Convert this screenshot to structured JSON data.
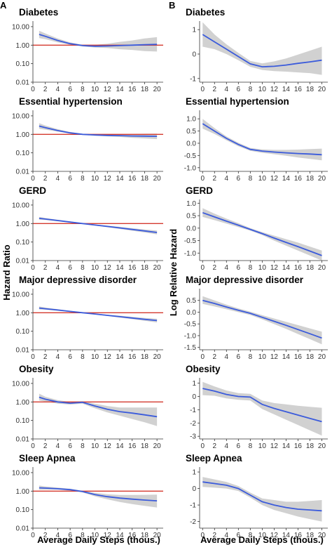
{
  "figure": {
    "panel_letters": [
      "A",
      "B"
    ],
    "left_ylabel": "Hazard Ratio",
    "right_ylabel": "Log Relative Hazard",
    "xlabel": "Average Daily Steps (thous.)"
  },
  "colors": {
    "fit": "#3b5bdb",
    "band": "#c9c9c9",
    "ref": "#d43a2f",
    "axis": "#333333"
  },
  "chart_data": [
    {
      "type": "line",
      "column": "A",
      "title": "Diabetes",
      "log_y": true,
      "ylim": [
        0.01,
        20
      ],
      "yticks": [
        0.01,
        0.1,
        1,
        10
      ],
      "ytick_labels": [
        "0.01",
        "0.10",
        "1.00",
        "10.00"
      ],
      "ref_line": 1,
      "xlim": [
        0,
        21
      ],
      "xticks": [
        0,
        2,
        4,
        6,
        8,
        10,
        12,
        14,
        16,
        18,
        20
      ],
      "x": [
        1,
        2,
        4,
        6,
        8,
        10,
        12,
        14,
        16,
        18,
        20
      ],
      "y": [
        3.8,
        3.0,
        1.8,
        1.2,
        0.95,
        0.88,
        0.9,
        0.95,
        1.0,
        1.05,
        1.1
      ],
      "lower": [
        2.4,
        2.1,
        1.4,
        1.05,
        0.85,
        0.75,
        0.7,
        0.6,
        0.55,
        0.48,
        0.45
      ],
      "upper": [
        6.0,
        4.3,
        2.3,
        1.4,
        1.05,
        1.05,
        1.2,
        1.5,
        1.8,
        2.3,
        2.7
      ]
    },
    {
      "type": "line",
      "column": "A",
      "title": "Essential hypertension",
      "log_y": true,
      "ylim": [
        0.01,
        20
      ],
      "yticks": [
        0.01,
        0.1,
        1,
        10
      ],
      "ytick_labels": [
        "0.01",
        "0.10",
        "1.00",
        "10.00"
      ],
      "ref_line": 1,
      "xlim": [
        0,
        21
      ],
      "xticks": [
        0,
        2,
        4,
        6,
        8,
        10,
        12,
        14,
        16,
        18,
        20
      ],
      "x": [
        1,
        2,
        4,
        6,
        8,
        10,
        12,
        14,
        16,
        18,
        20
      ],
      "y": [
        2.8,
        2.3,
        1.6,
        1.2,
        1.0,
        0.92,
        0.88,
        0.85,
        0.82,
        0.8,
        0.78
      ],
      "lower": [
        2.0,
        1.8,
        1.4,
        1.1,
        0.93,
        0.85,
        0.78,
        0.72,
        0.65,
        0.6,
        0.55
      ],
      "upper": [
        4.0,
        3.0,
        1.9,
        1.35,
        1.07,
        1.0,
        1.0,
        1.0,
        1.05,
        1.08,
        1.1
      ]
    },
    {
      "type": "line",
      "column": "A",
      "title": "GERD",
      "log_y": true,
      "ylim": [
        0.01,
        20
      ],
      "yticks": [
        0.01,
        0.1,
        1,
        10
      ],
      "ytick_labels": [
        "0.01",
        "0.10",
        "1.00",
        "10.00"
      ],
      "ref_line": 1,
      "xlim": [
        0,
        21
      ],
      "xticks": [
        0,
        2,
        4,
        6,
        8,
        10,
        12,
        14,
        16,
        18,
        20
      ],
      "x": [
        1,
        2,
        4,
        6,
        8,
        10,
        12,
        14,
        16,
        18,
        20
      ],
      "y": [
        1.9,
        1.75,
        1.45,
        1.2,
        1.0,
        0.83,
        0.7,
        0.58,
        0.48,
        0.4,
        0.33
      ],
      "lower": [
        1.6,
        1.55,
        1.32,
        1.12,
        0.95,
        0.78,
        0.63,
        0.51,
        0.41,
        0.33,
        0.26
      ],
      "upper": [
        2.3,
        2.0,
        1.6,
        1.3,
        1.05,
        0.89,
        0.77,
        0.66,
        0.56,
        0.48,
        0.42
      ]
    },
    {
      "type": "line",
      "column": "A",
      "title": "Major depressive disorder",
      "log_y": true,
      "ylim": [
        0.01,
        20
      ],
      "yticks": [
        0.01,
        0.1,
        1,
        10
      ],
      "ytick_labels": [
        "0.01",
        "0.10",
        "1.00",
        "10.00"
      ],
      "ref_line": 1,
      "xlim": [
        0,
        21
      ],
      "xticks": [
        0,
        2,
        4,
        6,
        8,
        10,
        12,
        14,
        16,
        18,
        20
      ],
      "x": [
        1,
        2,
        4,
        6,
        8,
        10,
        12,
        14,
        16,
        18,
        20
      ],
      "y": [
        1.8,
        1.65,
        1.4,
        1.18,
        1.0,
        0.85,
        0.72,
        0.61,
        0.52,
        0.44,
        0.38
      ],
      "lower": [
        1.5,
        1.45,
        1.27,
        1.1,
        0.95,
        0.8,
        0.66,
        0.54,
        0.45,
        0.37,
        0.3
      ],
      "upper": [
        2.2,
        1.9,
        1.55,
        1.27,
        1.05,
        0.9,
        0.78,
        0.69,
        0.6,
        0.53,
        0.47
      ]
    },
    {
      "type": "line",
      "column": "A",
      "title": "Obesity",
      "log_y": true,
      "ylim": [
        0.01,
        20
      ],
      "yticks": [
        0.01,
        0.1,
        1,
        10
      ],
      "ytick_labels": [
        "0.01",
        "0.10",
        "1.00",
        "10.00"
      ],
      "ref_line": 1,
      "xlim": [
        0,
        21
      ],
      "xticks": [
        0,
        2,
        4,
        6,
        8,
        10,
        12,
        14,
        16,
        18,
        20
      ],
      "x": [
        1,
        2,
        4,
        6,
        8,
        10,
        12,
        14,
        16,
        18,
        20
      ],
      "y": [
        1.8,
        1.4,
        1.0,
        0.85,
        0.95,
        0.6,
        0.4,
        0.3,
        0.25,
        0.2,
        0.16
      ],
      "lower": [
        1.2,
        1.05,
        0.8,
        0.72,
        0.8,
        0.45,
        0.27,
        0.18,
        0.12,
        0.08,
        0.05
      ],
      "upper": [
        2.8,
        1.9,
        1.25,
        1.0,
        1.1,
        0.8,
        0.6,
        0.5,
        0.5,
        0.5,
        0.5
      ]
    },
    {
      "type": "line",
      "column": "A",
      "title": "Sleep Apnea",
      "log_y": true,
      "ylim": [
        0.01,
        20
      ],
      "yticks": [
        0.01,
        0.1,
        1,
        10
      ],
      "ytick_labels": [
        "0.01",
        "0.10",
        "1.00",
        "10.00"
      ],
      "ref_line": 1,
      "xlim": [
        0,
        21
      ],
      "xticks": [
        0,
        2,
        4,
        6,
        8,
        10,
        12,
        14,
        16,
        18,
        20
      ],
      "x": [
        1,
        2,
        4,
        6,
        8,
        10,
        12,
        14,
        16,
        18,
        20
      ],
      "y": [
        1.5,
        1.45,
        1.35,
        1.2,
        0.95,
        0.65,
        0.5,
        0.42,
        0.37,
        0.33,
        0.3
      ],
      "lower": [
        1.2,
        1.2,
        1.2,
        1.05,
        0.85,
        0.52,
        0.36,
        0.26,
        0.2,
        0.16,
        0.13
      ],
      "upper": [
        2.0,
        1.8,
        1.55,
        1.35,
        1.05,
        0.8,
        0.68,
        0.62,
        0.62,
        0.63,
        0.65
      ]
    },
    {
      "type": "line",
      "column": "B",
      "title": "Diabetes",
      "log_y": false,
      "ylim": [
        -1.15,
        1.35
      ],
      "yticks": [
        -1,
        0,
        1
      ],
      "ytick_labels": [
        "-1",
        "0",
        "1"
      ],
      "xlim": [
        -0.5,
        21
      ],
      "xticks": [
        0,
        2,
        4,
        6,
        8,
        10,
        12,
        14,
        16,
        18,
        20
      ],
      "x": [
        0,
        2,
        4,
        6,
        8,
        10,
        12,
        14,
        16,
        18,
        20
      ],
      "y": [
        0.8,
        0.5,
        0.2,
        -0.1,
        -0.4,
        -0.52,
        -0.5,
        -0.45,
        -0.38,
        -0.32,
        -0.25
      ],
      "lower": [
        0.3,
        0.2,
        0.0,
        -0.25,
        -0.52,
        -0.65,
        -0.7,
        -0.72,
        -0.75,
        -0.78,
        -0.85
      ],
      "upper": [
        1.3,
        0.8,
        0.4,
        0.05,
        -0.28,
        -0.38,
        -0.3,
        -0.18,
        -0.02,
        0.14,
        0.3
      ]
    },
    {
      "type": "line",
      "column": "B",
      "title": "Essential hypertension",
      "log_y": false,
      "ylim": [
        -1.15,
        1.35
      ],
      "yticks": [
        -1,
        -0.5,
        0,
        0.5,
        1
      ],
      "ytick_labels": [
        "-1.0",
        "-0.5",
        "0.0",
        "0.5",
        "1.0"
      ],
      "xlim": [
        -0.5,
        21
      ],
      "xticks": [
        0,
        2,
        4,
        6,
        8,
        10,
        12,
        14,
        16,
        18,
        20
      ],
      "x": [
        0,
        2,
        4,
        6,
        8,
        10,
        12,
        14,
        16,
        18,
        20
      ],
      "y": [
        0.8,
        0.5,
        0.2,
        -0.05,
        -0.25,
        -0.32,
        -0.36,
        -0.39,
        -0.42,
        -0.44,
        -0.47
      ],
      "lower": [
        0.6,
        0.38,
        0.12,
        -0.12,
        -0.31,
        -0.39,
        -0.45,
        -0.51,
        -0.58,
        -0.64,
        -0.7
      ],
      "upper": [
        1.0,
        0.62,
        0.28,
        0.02,
        -0.19,
        -0.25,
        -0.27,
        -0.27,
        -0.26,
        -0.24,
        -0.22
      ]
    },
    {
      "type": "line",
      "column": "B",
      "title": "GERD",
      "log_y": false,
      "ylim": [
        -1.3,
        1.15
      ],
      "yticks": [
        -1,
        -0.5,
        0,
        0.5,
        1
      ],
      "ytick_labels": [
        "-1.0",
        "-0.5",
        "0.0",
        "0.5",
        "1.0"
      ],
      "xlim": [
        -0.5,
        21
      ],
      "xticks": [
        0,
        2,
        4,
        6,
        8,
        10,
        12,
        14,
        16,
        18,
        20
      ],
      "x": [
        0,
        2,
        4,
        6,
        8,
        10,
        12,
        14,
        16,
        18,
        20
      ],
      "y": [
        0.62,
        0.45,
        0.28,
        0.12,
        -0.05,
        -0.22,
        -0.4,
        -0.57,
        -0.74,
        -0.92,
        -1.1
      ],
      "lower": [
        0.45,
        0.32,
        0.18,
        0.04,
        -0.1,
        -0.28,
        -0.5,
        -0.7,
        -0.9,
        -1.1,
        -1.3
      ],
      "upper": [
        0.8,
        0.58,
        0.38,
        0.2,
        0.0,
        -0.16,
        -0.3,
        -0.44,
        -0.58,
        -0.74,
        -0.9
      ]
    },
    {
      "type": "line",
      "column": "B",
      "title": "Major depressive disorder",
      "log_y": false,
      "ylim": [
        -1.6,
        1.0
      ],
      "yticks": [
        -1.5,
        -1,
        -0.5,
        0,
        0.5
      ],
      "ytick_labels": [
        "-1.5",
        "-1.0",
        "-0.5",
        "0.0",
        "0.5"
      ],
      "xlim": [
        -0.5,
        21
      ],
      "xticks": [
        0,
        2,
        4,
        6,
        8,
        10,
        12,
        14,
        16,
        18,
        20
      ],
      "x": [
        0,
        2,
        4,
        6,
        8,
        10,
        12,
        14,
        16,
        18,
        20
      ],
      "y": [
        0.5,
        0.37,
        0.22,
        0.08,
        -0.05,
        -0.22,
        -0.39,
        -0.56,
        -0.74,
        -0.92,
        -1.1
      ],
      "lower": [
        0.35,
        0.24,
        0.12,
        0.0,
        -0.12,
        -0.31,
        -0.51,
        -0.71,
        -0.93,
        -1.15,
        -1.37
      ],
      "upper": [
        0.68,
        0.5,
        0.32,
        0.16,
        0.02,
        -0.13,
        -0.27,
        -0.41,
        -0.55,
        -0.69,
        -0.83
      ]
    },
    {
      "type": "line",
      "column": "B",
      "title": "Obesity",
      "log_y": false,
      "ylim": [
        -3.2,
        1.4
      ],
      "yticks": [
        -3,
        -2,
        -1,
        0,
        1
      ],
      "ytick_labels": [
        "-3",
        "-2",
        "-1",
        "0",
        "1"
      ],
      "xlim": [
        -0.5,
        21
      ],
      "xticks": [
        0,
        2,
        4,
        6,
        8,
        10,
        12,
        14,
        16,
        18,
        20
      ],
      "x": [
        0,
        2,
        4,
        6,
        8,
        10,
        12,
        14,
        16,
        18,
        20
      ],
      "y": [
        0.6,
        0.4,
        0.15,
        0.0,
        -0.05,
        -0.6,
        -0.9,
        -1.15,
        -1.4,
        -1.65,
        -1.9
      ],
      "lower": [
        0.1,
        0.05,
        -0.15,
        -0.25,
        -0.3,
        -0.95,
        -1.35,
        -1.75,
        -2.15,
        -2.55,
        -2.95
      ],
      "upper": [
        1.1,
        0.75,
        0.45,
        0.25,
        0.2,
        -0.3,
        -0.5,
        -0.6,
        -0.7,
        -0.78,
        -0.85
      ]
    },
    {
      "type": "line",
      "column": "B",
      "title": "Sleep Apnea",
      "log_y": false,
      "ylim": [
        -2.4,
        1.3
      ],
      "yticks": [
        -2,
        -1,
        0,
        1
      ],
      "ytick_labels": [
        "-2",
        "-1",
        "0",
        "1"
      ],
      "xlim": [
        -0.5,
        21
      ],
      "xticks": [
        0,
        2,
        4,
        6,
        8,
        10,
        12,
        14,
        16,
        18,
        20
      ],
      "x": [
        0,
        2,
        4,
        6,
        8,
        10,
        12,
        14,
        16,
        18,
        20
      ],
      "y": [
        0.4,
        0.3,
        0.2,
        0.0,
        -0.4,
        -0.8,
        -1.0,
        -1.15,
        -1.25,
        -1.3,
        -1.35
      ],
      "lower": [
        0.1,
        0.05,
        0.0,
        -0.15,
        -0.55,
        -1.0,
        -1.3,
        -1.5,
        -1.7,
        -1.85,
        -2.0
      ],
      "upper": [
        0.7,
        0.55,
        0.4,
        0.15,
        -0.25,
        -0.6,
        -0.7,
        -0.8,
        -0.8,
        -0.75,
        -0.7
      ]
    }
  ]
}
